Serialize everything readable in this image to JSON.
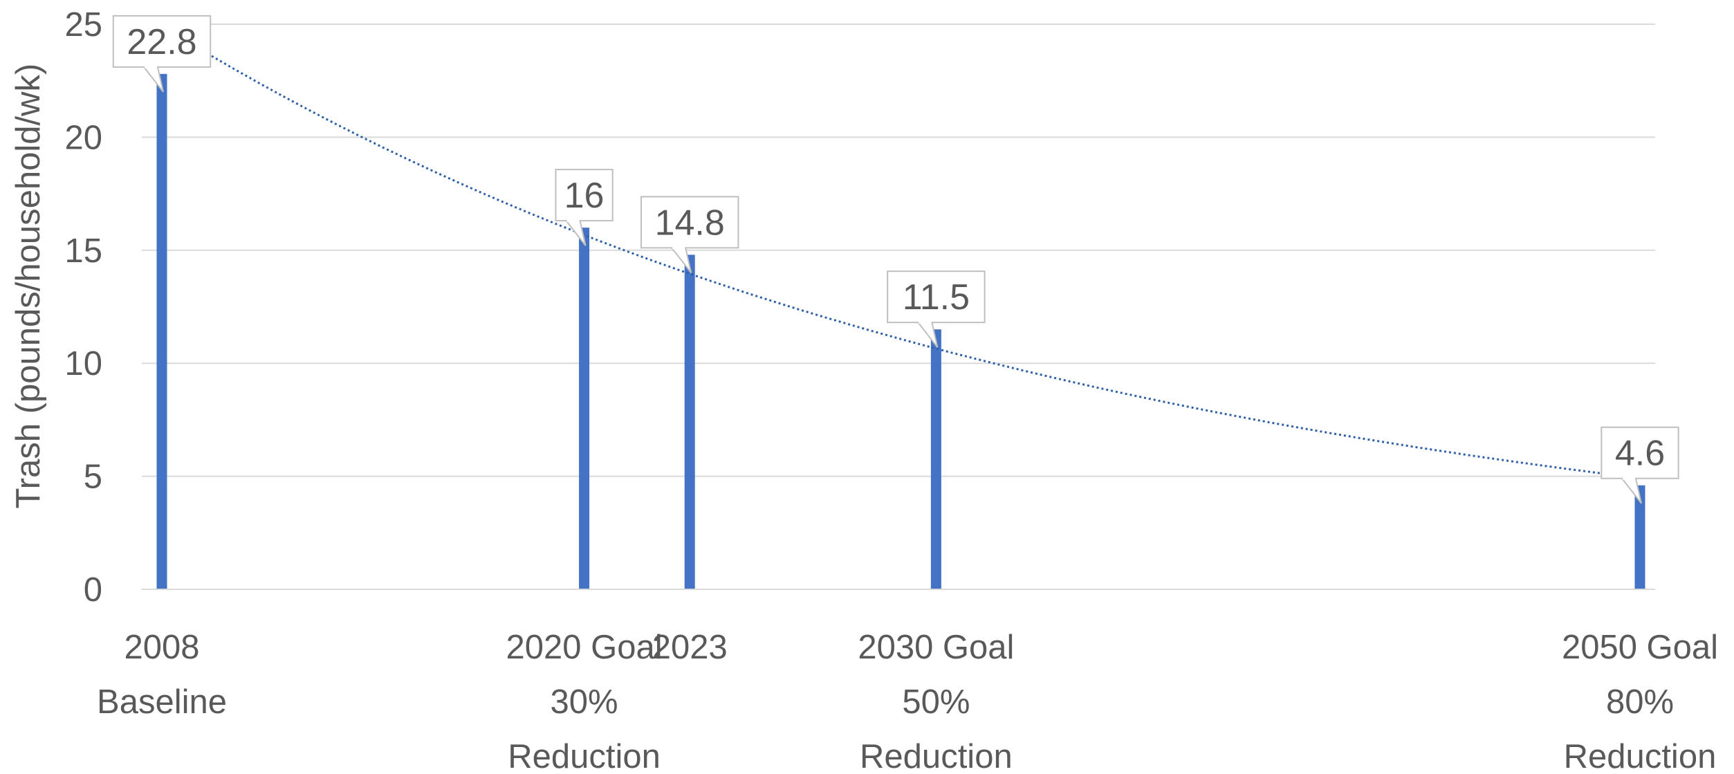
{
  "chart_data": {
    "type": "bar",
    "ylabel": "Trash (pounds/household/wk)",
    "ylim": [
      0,
      25
    ],
    "yticks": [
      0,
      5,
      10,
      15,
      20,
      25
    ],
    "x_axis_kind": "year",
    "x_range": [
      2008,
      2050
    ],
    "categories": [
      {
        "x": 2008,
        "label_lines": [
          "2008",
          "Baseline"
        ]
      },
      {
        "x": 2020,
        "label_lines": [
          "2020 Goal",
          "30%",
          "Reduction"
        ]
      },
      {
        "x": 2023,
        "label_lines": [
          "2023"
        ]
      },
      {
        "x": 2030,
        "label_lines": [
          "2030 Goal",
          "50%",
          "Reduction"
        ]
      },
      {
        "x": 2050,
        "label_lines": [
          "2050 Goal",
          "80%",
          "Reduction"
        ]
      }
    ],
    "values": [
      22.8,
      16,
      14.8,
      11.5,
      4.6
    ],
    "data_labels": [
      "22.8",
      "16",
      "14.8",
      "11.5",
      "4.6"
    ],
    "trendline": {
      "style": "dotted",
      "kind": "exponential"
    },
    "grid": true,
    "colors": {
      "bar": "#4472c4",
      "trend": "#2e5fa8",
      "grid": "#d9d9d9",
      "text": "#595959",
      "callout_border": "#bfbfbf"
    }
  }
}
